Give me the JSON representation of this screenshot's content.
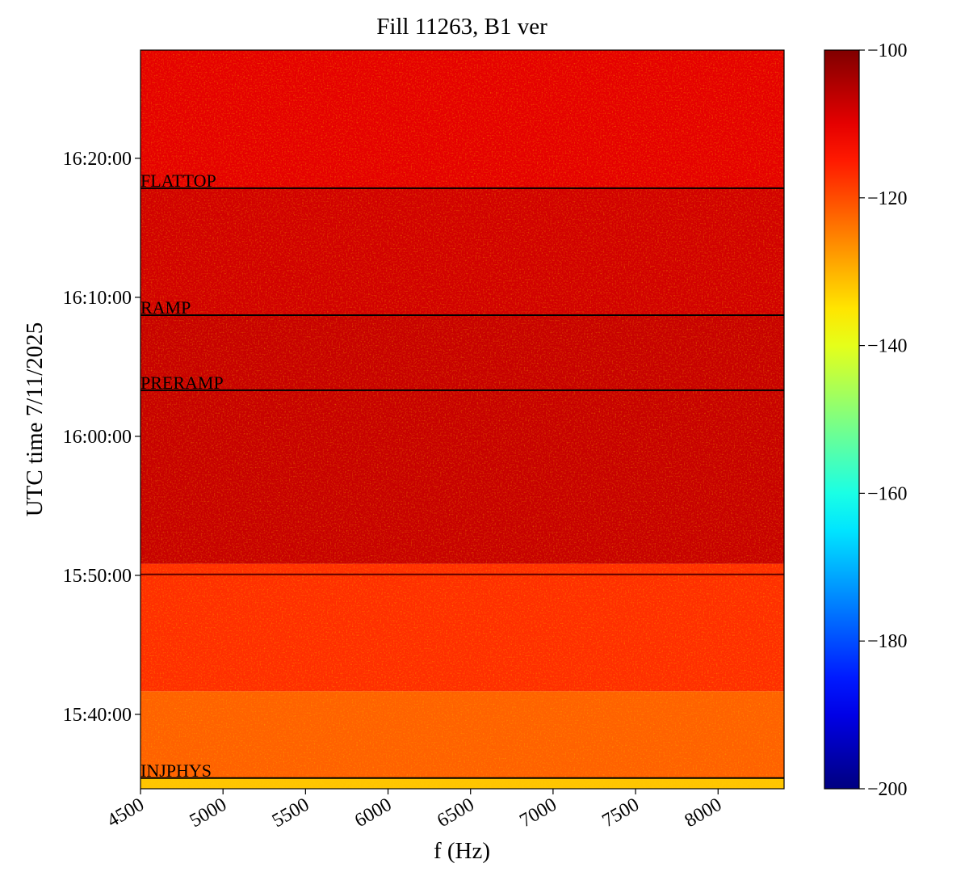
{
  "chart_data": {
    "type": "spectrogram",
    "title": "Fill 11263, B1 ver",
    "xlabel": "f (Hz)",
    "ylabel": "UTC time 7/11/2025",
    "xlim": [
      4500,
      8400
    ],
    "xticks": [
      4500,
      5000,
      5500,
      6000,
      6500,
      7000,
      7500,
      8000
    ],
    "ylim": [
      56079,
      59267
    ],
    "yticks": [
      {
        "value": 56400,
        "label": "15:40:00"
      },
      {
        "value": 57000,
        "label": "15:50:00"
      },
      {
        "value": 57600,
        "label": "16:00:00"
      },
      {
        "value": 58200,
        "label": "16:10:00"
      },
      {
        "value": 58800,
        "label": "16:20:00"
      }
    ],
    "colormap": "jet",
    "clim": [
      -200,
      -100
    ],
    "cticks": [
      {
        "value": -200,
        "label": "−200"
      },
      {
        "value": -180,
        "label": "−180"
      },
      {
        "value": -160,
        "label": "−160"
      },
      {
        "value": -140,
        "label": "−140"
      },
      {
        "value": -120,
        "label": "−120"
      },
      {
        "value": -100,
        "label": "−100"
      }
    ],
    "ybins": [
      56079,
      56125,
      56500,
      57050,
      58123,
      58671,
      59267
    ],
    "values": [
      -132,
      -122,
      -117,
      -107,
      -108,
      -110
    ],
    "events": {
      "labels": [
        "INJPHYS",
        null,
        "PRERAMP",
        "RAMP",
        "FLATTOP"
      ],
      "times": [
        56125,
        57004,
        57799,
        58123,
        58671
      ]
    }
  }
}
